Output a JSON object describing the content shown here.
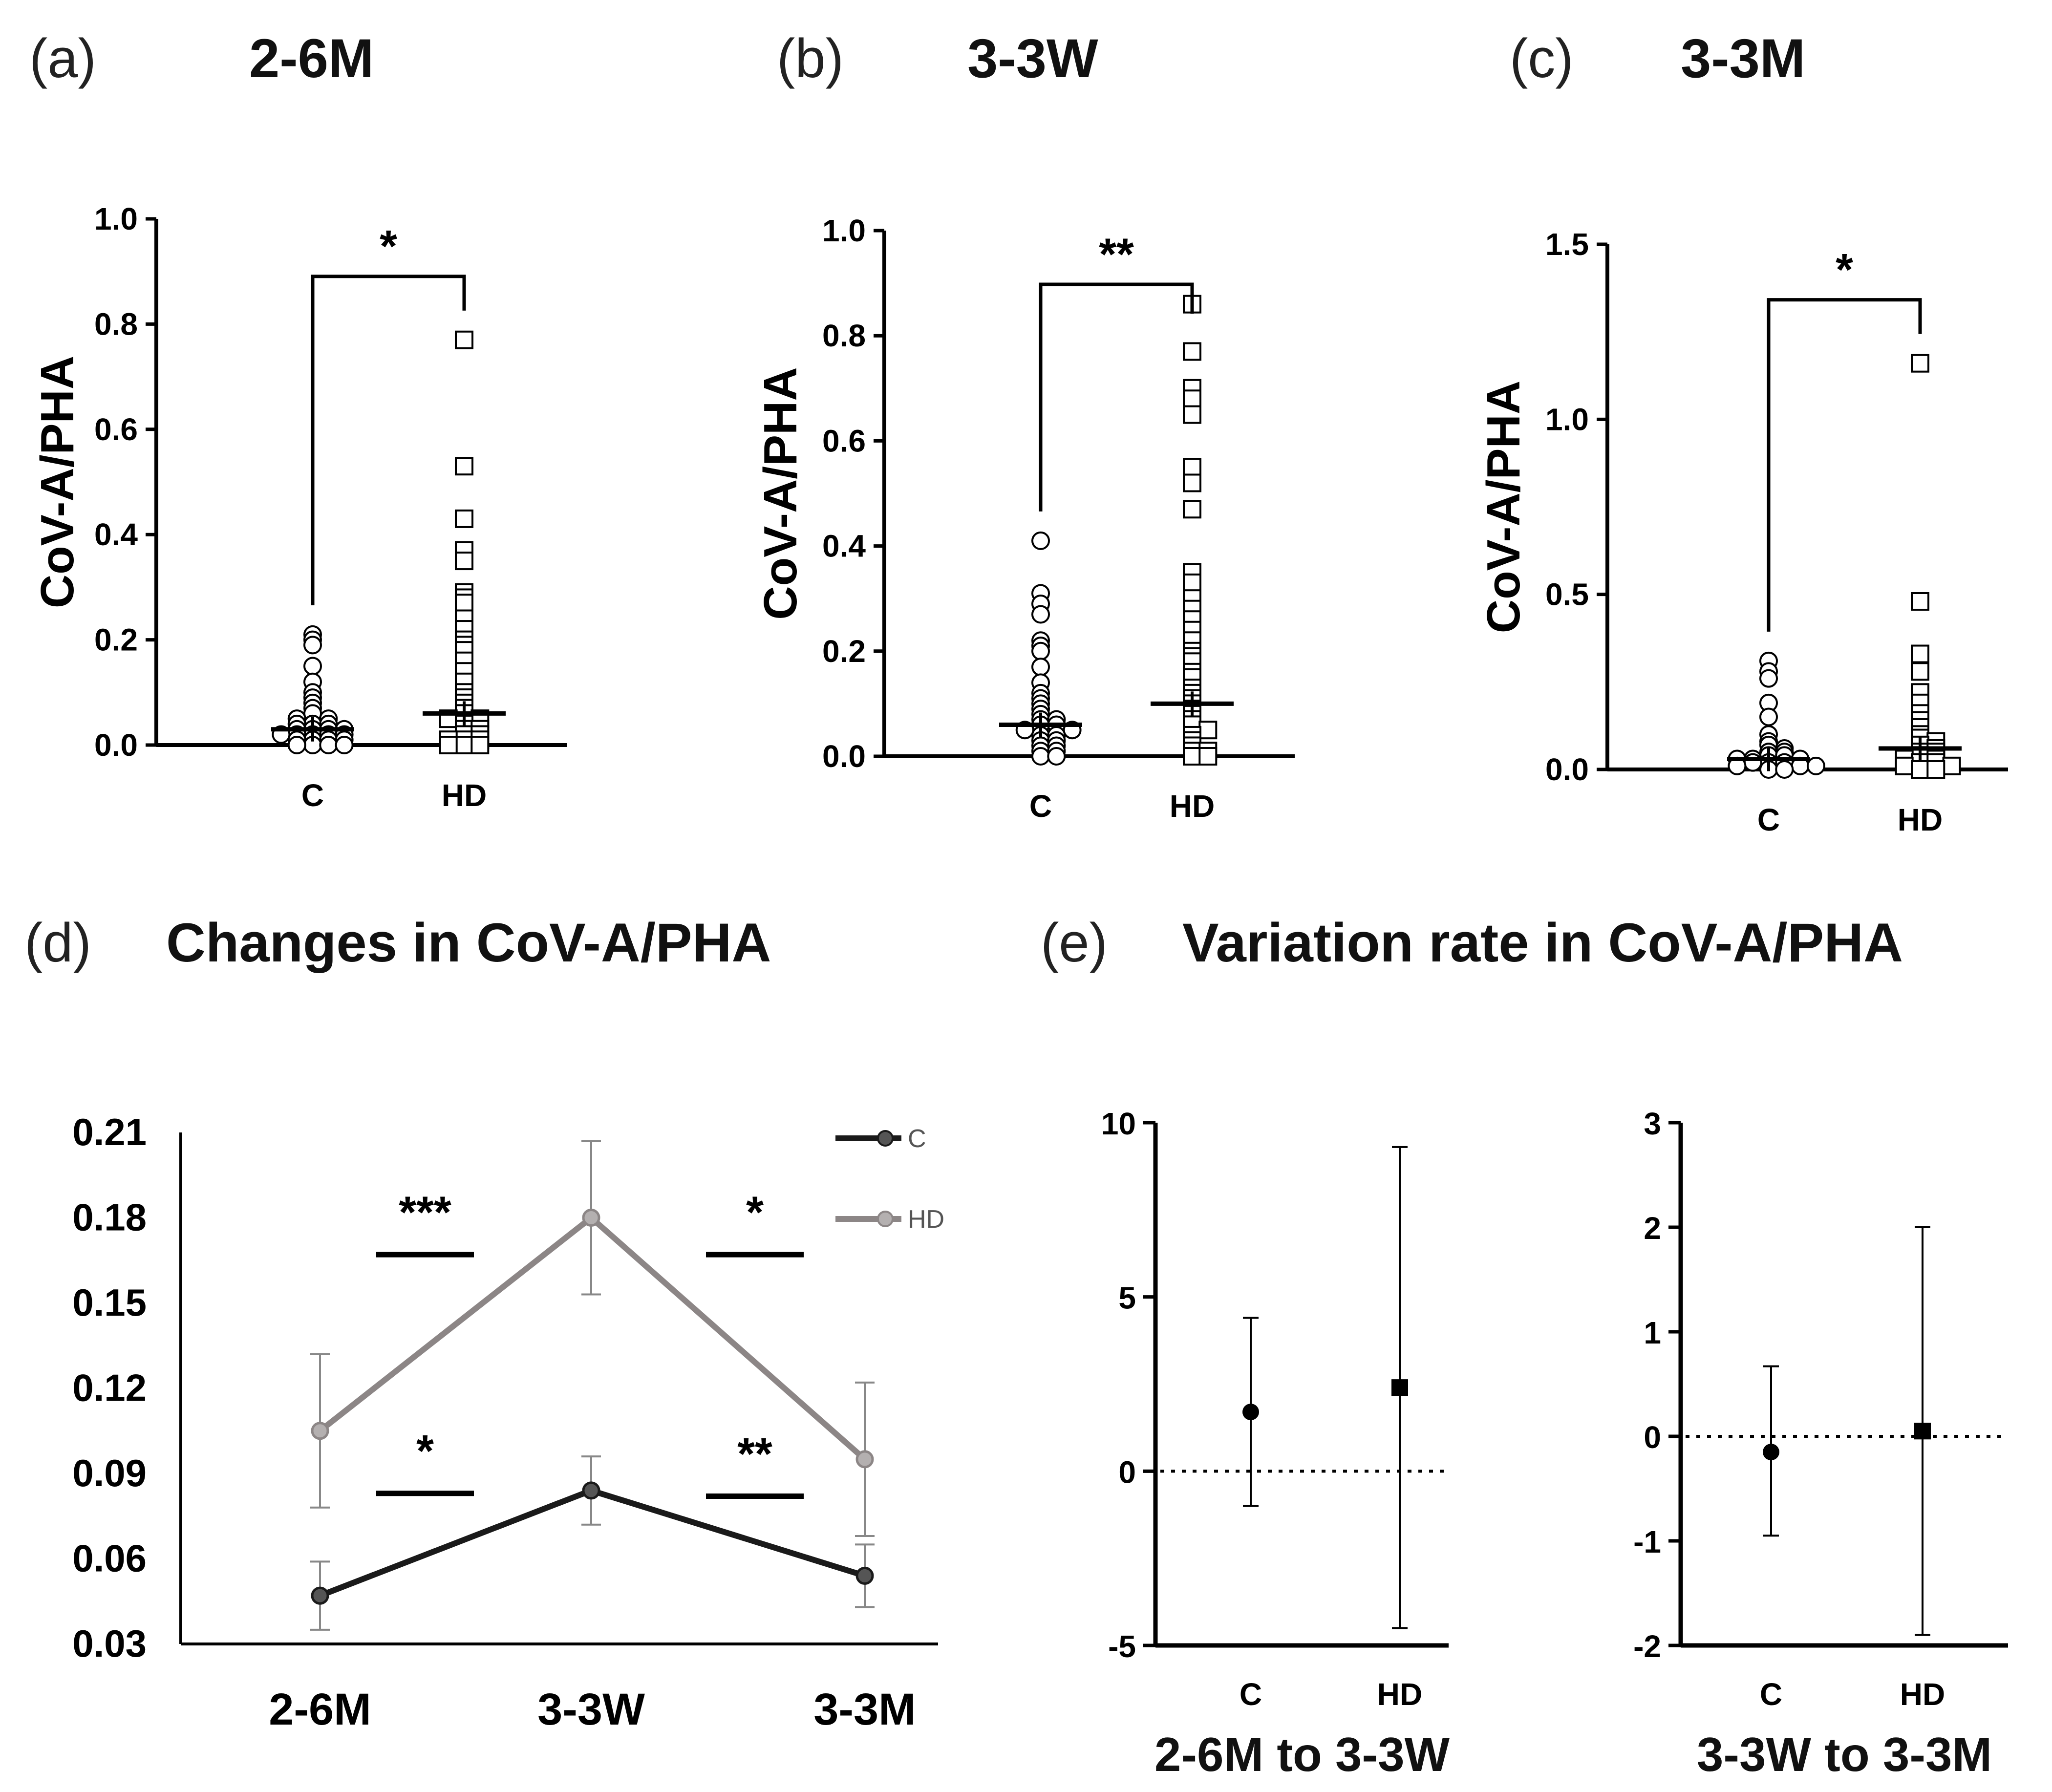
{
  "panels": {
    "a": {
      "letter": "(a)",
      "title": "2-6M"
    },
    "b": {
      "letter": "(b)",
      "title": "3-3W"
    },
    "c": {
      "letter": "(c)",
      "title": "3-3M"
    },
    "d": {
      "letter": "(d)",
      "title": "Changes in CoV-A/PHA"
    },
    "e": {
      "letter": "(e)",
      "title": "Variation rate in CoV-A/PHA"
    }
  },
  "chart_data": [
    {
      "id": "a",
      "type": "scatter",
      "title": "2-6M",
      "ylabel": "CoV-A/PHA",
      "ylim": [
        0,
        1.0
      ],
      "yticks": [
        "0.0",
        "0.2",
        "0.4",
        "0.6",
        "0.8",
        "1.0"
      ],
      "categories": [
        "C",
        "HD"
      ],
      "significance": "*",
      "series": [
        {
          "name": "C",
          "marker": "circle",
          "mean": 0.03,
          "values": [
            0.21,
            0.2,
            0.19,
            0.15,
            0.12,
            0.1,
            0.09,
            0.08,
            0.07,
            0.06,
            0.05,
            0.05,
            0.04,
            0.04,
            0.04,
            0.03,
            0.03,
            0.03,
            0.03,
            0.02,
            0.02,
            0.02,
            0.02,
            0.02,
            0.01,
            0.01,
            0.01,
            0.01,
            0.0,
            0.0,
            0.0,
            0.0
          ]
        },
        {
          "name": "HD",
          "marker": "square",
          "mean": 0.06,
          "values": [
            0.77,
            0.53,
            0.43,
            0.37,
            0.35,
            0.29,
            0.28,
            0.27,
            0.24,
            0.22,
            0.2,
            0.19,
            0.18,
            0.16,
            0.14,
            0.12,
            0.1,
            0.09,
            0.08,
            0.07,
            0.06,
            0.05,
            0.05,
            0.04,
            0.03,
            0.03,
            0.02,
            0.02,
            0.01,
            0.01,
            0.01,
            0.0,
            0.0,
            0.0
          ]
        }
      ]
    },
    {
      "id": "b",
      "type": "scatter",
      "title": "3-3W",
      "ylabel": "CoV-A/PHA",
      "ylim": [
        0,
        1.0
      ],
      "yticks": [
        "0.0",
        "0.2",
        "0.4",
        "0.6",
        "0.8",
        "1.0"
      ],
      "categories": [
        "C",
        "HD"
      ],
      "significance": "**",
      "series": [
        {
          "name": "C",
          "marker": "circle",
          "mean": 0.06,
          "values": [
            0.41,
            0.31,
            0.29,
            0.27,
            0.22,
            0.21,
            0.2,
            0.17,
            0.14,
            0.12,
            0.11,
            0.1,
            0.09,
            0.08,
            0.07,
            0.07,
            0.06,
            0.06,
            0.05,
            0.05,
            0.04,
            0.04,
            0.03,
            0.03,
            0.02,
            0.02,
            0.01,
            0.01,
            0.0,
            0.0
          ]
        },
        {
          "name": "HD",
          "marker": "square",
          "mean": 0.1,
          "values": [
            0.86,
            0.77,
            0.7,
            0.68,
            0.65,
            0.55,
            0.52,
            0.47,
            0.35,
            0.33,
            0.3,
            0.28,
            0.26,
            0.24,
            0.22,
            0.2,
            0.19,
            0.18,
            0.16,
            0.15,
            0.13,
            0.12,
            0.11,
            0.1,
            0.09,
            0.08,
            0.07,
            0.06,
            0.05,
            0.04,
            0.03,
            0.02,
            0.01,
            0.01,
            0.0,
            0.0
          ]
        }
      ]
    },
    {
      "id": "c",
      "type": "scatter",
      "title": "3-3M",
      "ylabel": "CoV-A/PHA",
      "ylim": [
        0,
        1.5
      ],
      "yticks": [
        "0.0",
        "0.5",
        "1.0",
        "1.5"
      ],
      "categories": [
        "C",
        "HD"
      ],
      "significance": "*",
      "series": [
        {
          "name": "C",
          "marker": "circle",
          "mean": 0.03,
          "values": [
            0.31,
            0.28,
            0.26,
            0.19,
            0.15,
            0.1,
            0.08,
            0.07,
            0.06,
            0.05,
            0.05,
            0.04,
            0.04,
            0.03,
            0.03,
            0.03,
            0.02,
            0.02,
            0.02,
            0.01,
            0.01,
            0.01,
            0.0,
            0.0
          ]
        },
        {
          "name": "HD",
          "marker": "square",
          "mean": 0.06,
          "values": [
            1.16,
            0.48,
            0.33,
            0.28,
            0.22,
            0.19,
            0.16,
            0.14,
            0.12,
            0.1,
            0.09,
            0.08,
            0.07,
            0.06,
            0.05,
            0.05,
            0.04,
            0.03,
            0.03,
            0.02,
            0.02,
            0.01,
            0.01,
            0.0,
            0.0
          ]
        }
      ]
    },
    {
      "id": "d",
      "type": "line",
      "title": "Changes in CoV-A/PHA",
      "ylim": [
        0.03,
        0.21
      ],
      "yticks": [
        "0.21",
        "0.18",
        "0.15",
        "0.12",
        "0.09",
        "0.06",
        "0.03"
      ],
      "categories": [
        "2-6M",
        "3-3W",
        "3-3M"
      ],
      "series": [
        {
          "name": "C",
          "color": "#1a1a1a",
          "values": [
            0.047,
            0.084,
            0.054
          ],
          "err": [
            0.012,
            0.012,
            0.011
          ]
        },
        {
          "name": "HD",
          "color": "#8c8686",
          "values": [
            0.105,
            0.18,
            0.095
          ],
          "err": [
            0.027,
            0.027,
            0.027
          ]
        }
      ],
      "annotations": [
        {
          "text": "***",
          "between": "2-6M/3-3W",
          "level": 0.167
        },
        {
          "text": "*",
          "between": "3-3W/3-3M",
          "level": 0.167
        },
        {
          "text": "*",
          "between": "2-6M/3-3W",
          "level": 0.083
        },
        {
          "text": "**",
          "between": "3-3W/3-3M",
          "level": 0.082
        }
      ]
    },
    {
      "id": "e1",
      "type": "scatter",
      "xlabel": "2-6M to 3-3W",
      "ylim": [
        -5,
        10
      ],
      "yticks": [
        "10",
        "5",
        "0",
        "-5"
      ],
      "categories": [
        "C",
        "HD"
      ],
      "series": [
        {
          "name": "C",
          "marker": "circle",
          "value": 1.7,
          "low": -1.0,
          "high": 4.4
        },
        {
          "name": "HD",
          "marker": "square",
          "value": 2.4,
          "low": -4.5,
          "high": 9.3
        }
      ]
    },
    {
      "id": "e2",
      "type": "scatter",
      "xlabel": "3-3W to 3-3M",
      "ylim": [
        -2,
        3
      ],
      "yticks": [
        "3",
        "2",
        "1",
        "0",
        "-1",
        "-2"
      ],
      "categories": [
        "C",
        "HD"
      ],
      "series": [
        {
          "name": "C",
          "marker": "circle",
          "value": -0.15,
          "low": -0.95,
          "high": 0.67
        },
        {
          "name": "HD",
          "marker": "square",
          "value": 0.05,
          "low": -1.9,
          "high": 2.0
        }
      ]
    }
  ]
}
